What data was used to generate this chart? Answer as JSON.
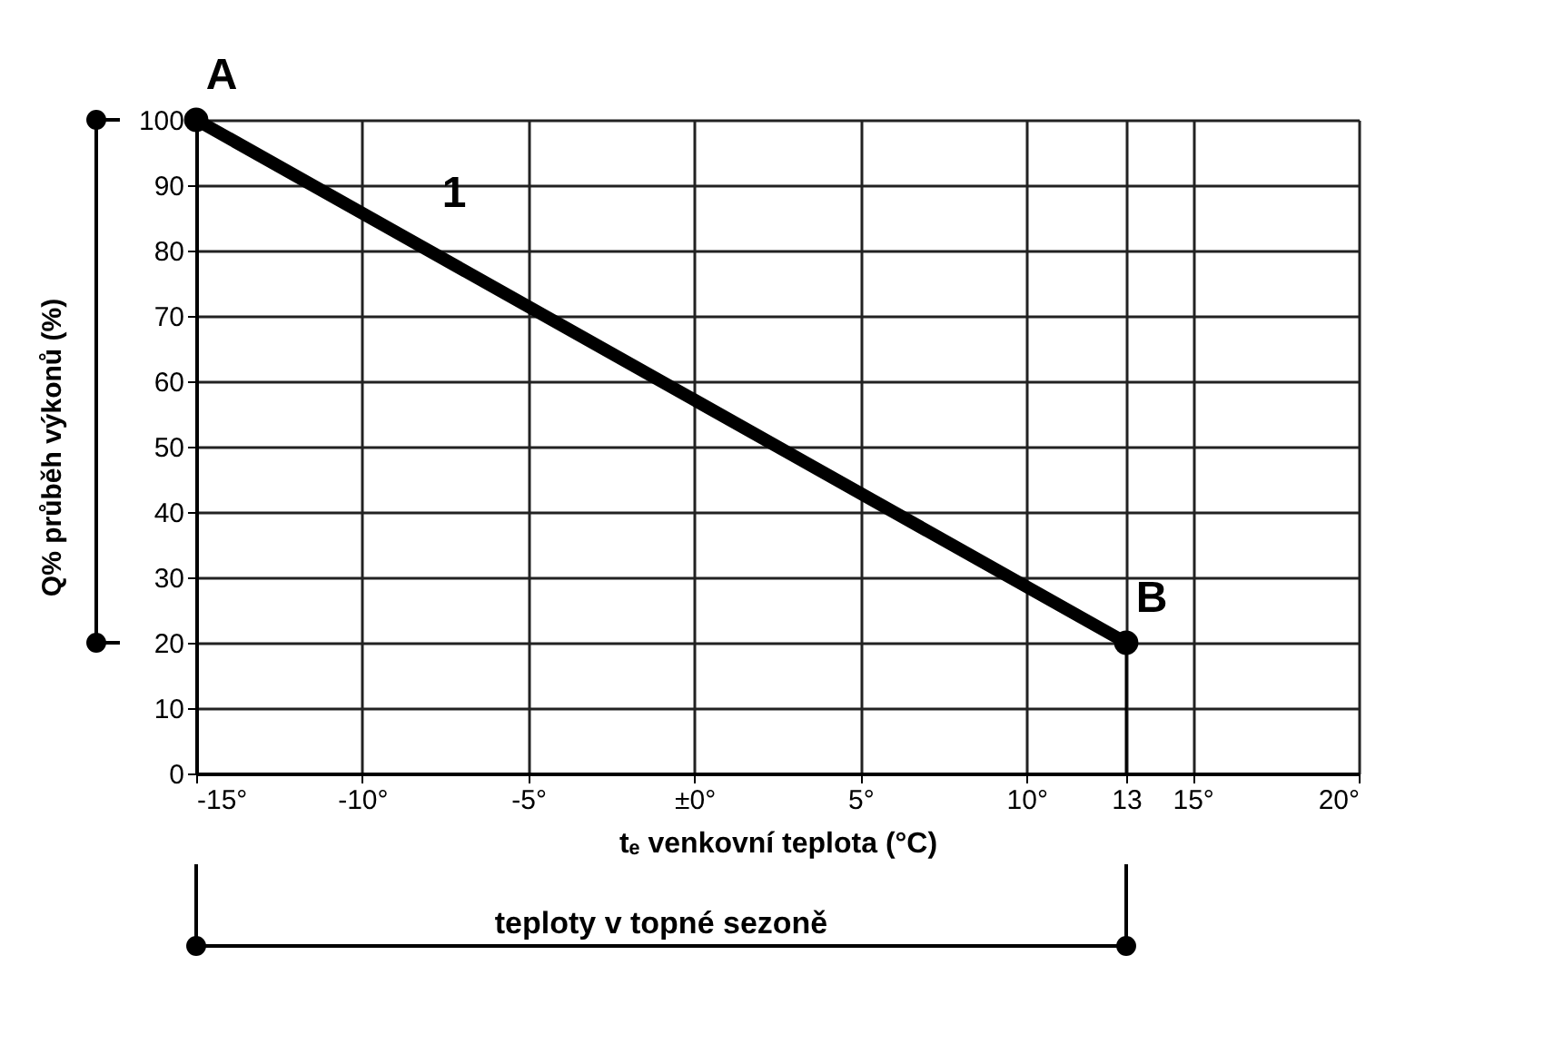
{
  "chart_data": {
    "type": "line",
    "xlabel": "tₑ venkovní teplota (°C)",
    "ylabel": "Q% průběh výkonů (%)",
    "x": [
      -15,
      13
    ],
    "series": [
      {
        "color": "#000000",
        "values": [
          100,
          20
        ]
      }
    ],
    "marker": "circle",
    "xlim": [
      -15,
      20
    ],
    "xticks": [
      {
        "value": -15,
        "label": "-15°"
      },
      {
        "value": -10,
        "label": "-10°"
      },
      {
        "value": -5,
        "label": "-5°"
      },
      {
        "value": 0,
        "label": "±0°"
      },
      {
        "value": 5,
        "label": "5°"
      },
      {
        "value": 10,
        "label": "10°"
      },
      13,
      {
        "value": 15,
        "label": "15°"
      },
      {
        "value": 20,
        "label": "20°"
      }
    ],
    "ylim": [
      0,
      100
    ],
    "yticks": [
      0,
      10,
      20,
      30,
      40,
      50,
      60,
      70,
      80,
      90,
      100
    ],
    "grid": true,
    "annotations": [
      {
        "text": "A",
        "x": -15,
        "y": 100
      },
      {
        "text": "B",
        "x": 13,
        "y": 20
      },
      {
        "text": "1",
        "x": -8,
        "y": 82
      },
      "teploty v topné sezoně"
    ]
  }
}
